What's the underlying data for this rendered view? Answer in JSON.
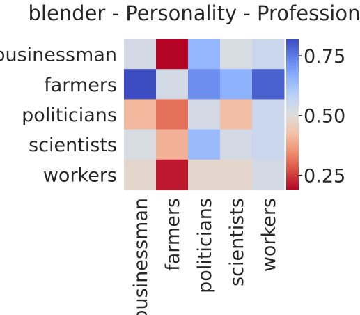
{
  "chart_data": {
    "type": "heatmap",
    "title": "blender - Personality - Profession",
    "rows": [
      "businessman",
      "farmers",
      "politicians",
      "scientists",
      "workers"
    ],
    "columns": [
      "businessman",
      "farmers",
      "politicians",
      "scientists",
      "workers"
    ],
    "values": [
      [
        0.53,
        0.19,
        0.65,
        0.52,
        0.55
      ],
      [
        0.82,
        0.53,
        0.72,
        0.66,
        0.79
      ],
      [
        0.41,
        0.31,
        0.53,
        0.42,
        0.55
      ],
      [
        0.52,
        0.4,
        0.64,
        0.53,
        0.55
      ],
      [
        0.48,
        0.21,
        0.48,
        0.48,
        0.53
      ]
    ],
    "colormap": "coolwarm_r",
    "vmin": 0.19,
    "vmax": 0.82,
    "colorbar": {
      "ticks": [
        0.25,
        0.5,
        0.75
      ],
      "tick_labels": [
        "0.25",
        "0.50",
        "0.75"
      ]
    },
    "grid": false
  }
}
